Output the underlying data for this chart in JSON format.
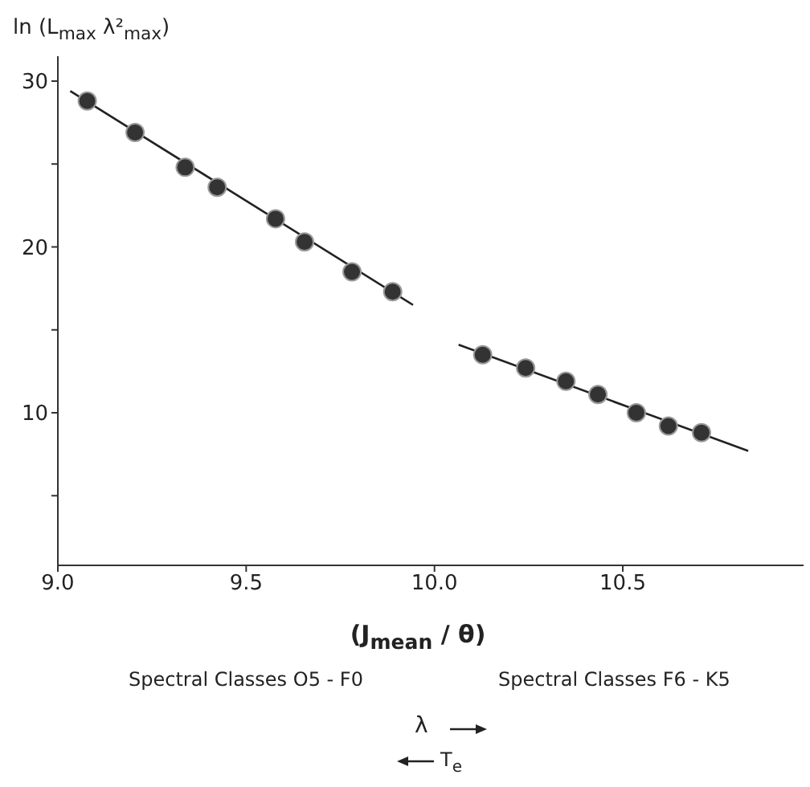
{
  "chart_data": {
    "type": "scatter",
    "ylabel": "ln (L$_{max}$ λ²$_{max}$)",
    "xlabel": "(J$_{mean}$ / θ)",
    "annotations": [
      "Spectral Classes O5 - F0",
      "Spectral Classes F6 - K5",
      "λ",
      "T$_{e}$"
    ],
    "xlim": [
      9.0,
      10.98
    ],
    "xticks": [
      {
        "value": 9,
        "label": "9.0"
      },
      9.5,
      {
        "value": 10,
        "label": "10.0"
      },
      10.5
    ],
    "ylim": [
      0.8,
      31.5
    ],
    "yticks": [
      {
        "value": 5,
        "label": null
      },
      10,
      {
        "value": 15,
        "label": null
      },
      20,
      {
        "value": 25,
        "label": null
      },
      30
    ],
    "marker": "circle",
    "series": [
      {
        "color": "#333333",
        "x": [
          9.078,
          9.205,
          9.338,
          9.423,
          9.578,
          9.655,
          9.781,
          9.889
        ],
        "values": [
          28.8,
          26.9,
          24.8,
          23.6,
          21.7,
          20.3,
          18.5,
          17.3
        ]
      },
      {
        "color": "#333333",
        "x": [
          10.128,
          10.242,
          10.349,
          10.434,
          10.536,
          10.621,
          10.709
        ],
        "values": [
          13.5,
          12.7,
          11.9,
          11.1,
          10.0,
          9.2,
          8.8
        ]
      },
      {
        "type": "line",
        "color": "#222222",
        "x": [
          9.033,
          9.943
        ],
        "values": [
          29.4,
          16.5
        ],
        "marker": "none",
        "line_style": "solid"
      },
      {
        "type": "line",
        "color": "#222222",
        "x": [
          10.064,
          10.833
        ],
        "values": [
          14.1,
          7.7
        ],
        "marker": "none",
        "line_style": "solid"
      }
    ]
  }
}
